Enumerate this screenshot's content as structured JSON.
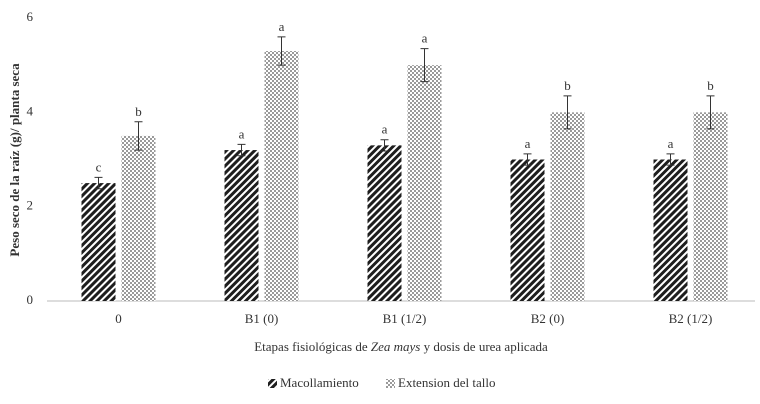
{
  "chart_data": {
    "type": "bar",
    "y_label": "Peso seco de la raíz (g)/ planta seca",
    "x_label": {
      "before": "Etapas fisiológicas de ",
      "italic": "Zea mays",
      "after": " y dosis de urea aplicada"
    },
    "categories": [
      "0",
      "B1 (0)",
      "B1 (1/2)",
      "B2 (0)",
      "B2 (1/2)"
    ],
    "series": [
      {
        "name": "Macollamiento",
        "color": "#1e1e1e",
        "hatch": "diagonal",
        "values": [
          2.5,
          3.2,
          3.3,
          3.0,
          3.0
        ],
        "errors": [
          0.12,
          0.12,
          0.12,
          0.12,
          0.12
        ],
        "letters": [
          "c",
          "a",
          "a",
          "a",
          "a"
        ]
      },
      {
        "name": "Extension del tallo",
        "color": "#9a9a9a",
        "hatch": "crosshatch",
        "values": [
          3.5,
          5.3,
          5.0,
          4.0,
          4.0
        ],
        "errors": [
          0.3,
          0.3,
          0.35,
          0.35,
          0.35
        ],
        "letters": [
          "b",
          "a",
          "a",
          "b",
          "b"
        ]
      }
    ],
    "ylim": [
      0,
      6
    ],
    "yticks": [
      0,
      2,
      4,
      6
    ],
    "legend": "bottom"
  }
}
